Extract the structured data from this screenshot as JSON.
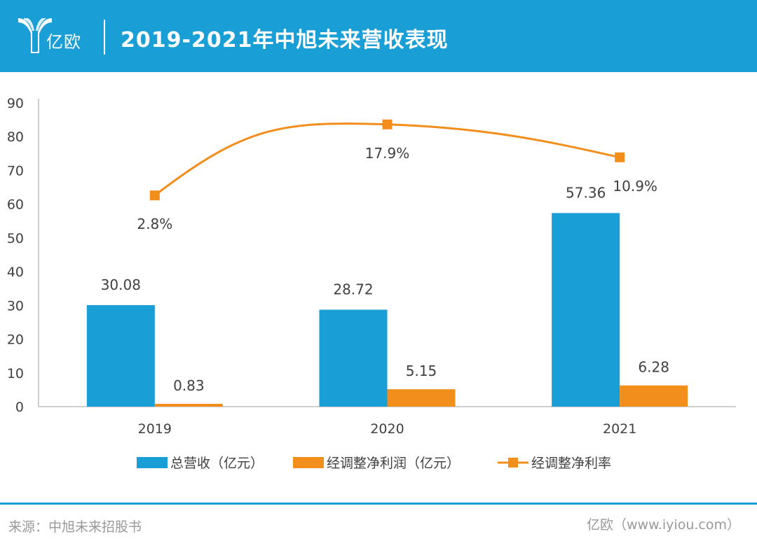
{
  "header": {
    "logo_text": "亿欧",
    "title": "2019-2021年中旭未来营收表现"
  },
  "colors": {
    "header_bg": "#1a9ed6",
    "revenue": "#1a9ed6",
    "profit": "#f18e1c",
    "margin": "#f18e1c"
  },
  "footer": {
    "source": "来源：中旭未来招股书",
    "credit": "亿欧（www.iyiou.com）"
  },
  "chart_data": {
    "type": "bar",
    "categories": [
      "2019",
      "2020",
      "2021"
    ],
    "ylim": [
      0,
      90
    ],
    "yticks": [
      "0",
      "10",
      "20",
      "30",
      "40",
      "50",
      "60",
      "70",
      "80",
      "90"
    ],
    "series": [
      {
        "name": "总营收（亿元）",
        "kind": "bar",
        "values": [
          30.08,
          28.72,
          57.36
        ],
        "labels": [
          "30.08",
          "28.72",
          "57.36"
        ]
      },
      {
        "name": "经调整净利润（亿元）",
        "kind": "bar",
        "values": [
          0.83,
          5.15,
          6.28
        ],
        "labels": [
          "0.83",
          "5.15",
          "6.28"
        ]
      },
      {
        "name": "经调整净利率",
        "kind": "line",
        "values": [
          2.8,
          17.9,
          10.9
        ],
        "labels": [
          "2.8%",
          "17.9%",
          "10.9%"
        ]
      }
    ],
    "legend_position": "bottom"
  }
}
